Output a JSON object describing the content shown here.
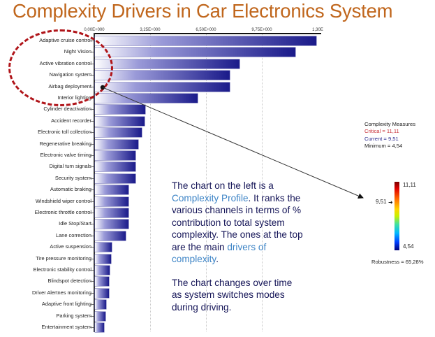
{
  "title": "Complexity Drivers in Car Electronics System",
  "chart_data": {
    "type": "bar",
    "orientation": "horizontal",
    "title": "Complexity Drivers in Car Electronics System",
    "xlabel": "",
    "ylabel": "",
    "xlim": [
      0,
      13.0
    ],
    "x_ticks": [
      "0,00E+000",
      "3,25E+000",
      "6,50E+000",
      "9,75E+000",
      "1,30E"
    ],
    "x_tick_values": [
      0,
      3.25,
      6.5,
      9.75,
      13.0
    ],
    "grid": true,
    "categories": [
      "Adaptive cruise control",
      "Night Vision",
      "Active vibration control",
      "Navigation system",
      "Airbag deployment",
      "Interior lighting",
      "Cylinder deactivation",
      "Accident recorder",
      "Electronic toll collection",
      "Regenerative breaking",
      "Electronic valve timing",
      "Digital turn signals",
      "Security system",
      "Automatic braking",
      "Windshield wiper control",
      "Electronic throttle control",
      "Idle Stop/Start",
      "Lane correction",
      "Active suspension",
      "Tire pressure monitoring",
      "Electronic stability control",
      "Blindspot detection",
      "Driver Alertnes monitoring",
      "Adaptive front lighting",
      "Parking system",
      "Entertainment system"
    ],
    "values": [
      12.9,
      11.7,
      8.45,
      7.9,
      7.9,
      6.0,
      2.97,
      2.93,
      2.76,
      2.56,
      2.4,
      2.4,
      2.4,
      2.0,
      2.0,
      2.0,
      2.0,
      1.83,
      1.0,
      0.98,
      0.9,
      0.85,
      0.85,
      0.7,
      0.65,
      0.57
    ],
    "highlight": "Top 6 channels circled with red dashed ellipse",
    "annotation": "Arrow from Airbag deployment bar to current value 9,51 on color scale"
  },
  "description": {
    "p1_a": "The chart on the left is a ",
    "p1_hl1": "Complexity Profile",
    "p1_b": ". It ranks the various channels in terms of % contribution to total system complexity. The ones at the top are the main ",
    "p1_hl2": "drivers of complexity",
    "p1_c": ".",
    "p2": "The chart changes over time as system switches modes during driving."
  },
  "measures": {
    "title": "Complexity Measures",
    "critical": "Critical = 11,11",
    "current": "Current = 9,51",
    "minimum": "Minimum = 4,54"
  },
  "scale": {
    "max": "11,11",
    "min": "4,54",
    "current": "9,51",
    "robustness": "Robustness = 65,28%"
  },
  "colors": {
    "title": "#c0661c",
    "bar": "#1a1a8a",
    "ellipse": "#b0151a",
    "highlight_text": "#3d84c6",
    "body_text": "#141457",
    "critical": "#c8323a"
  }
}
